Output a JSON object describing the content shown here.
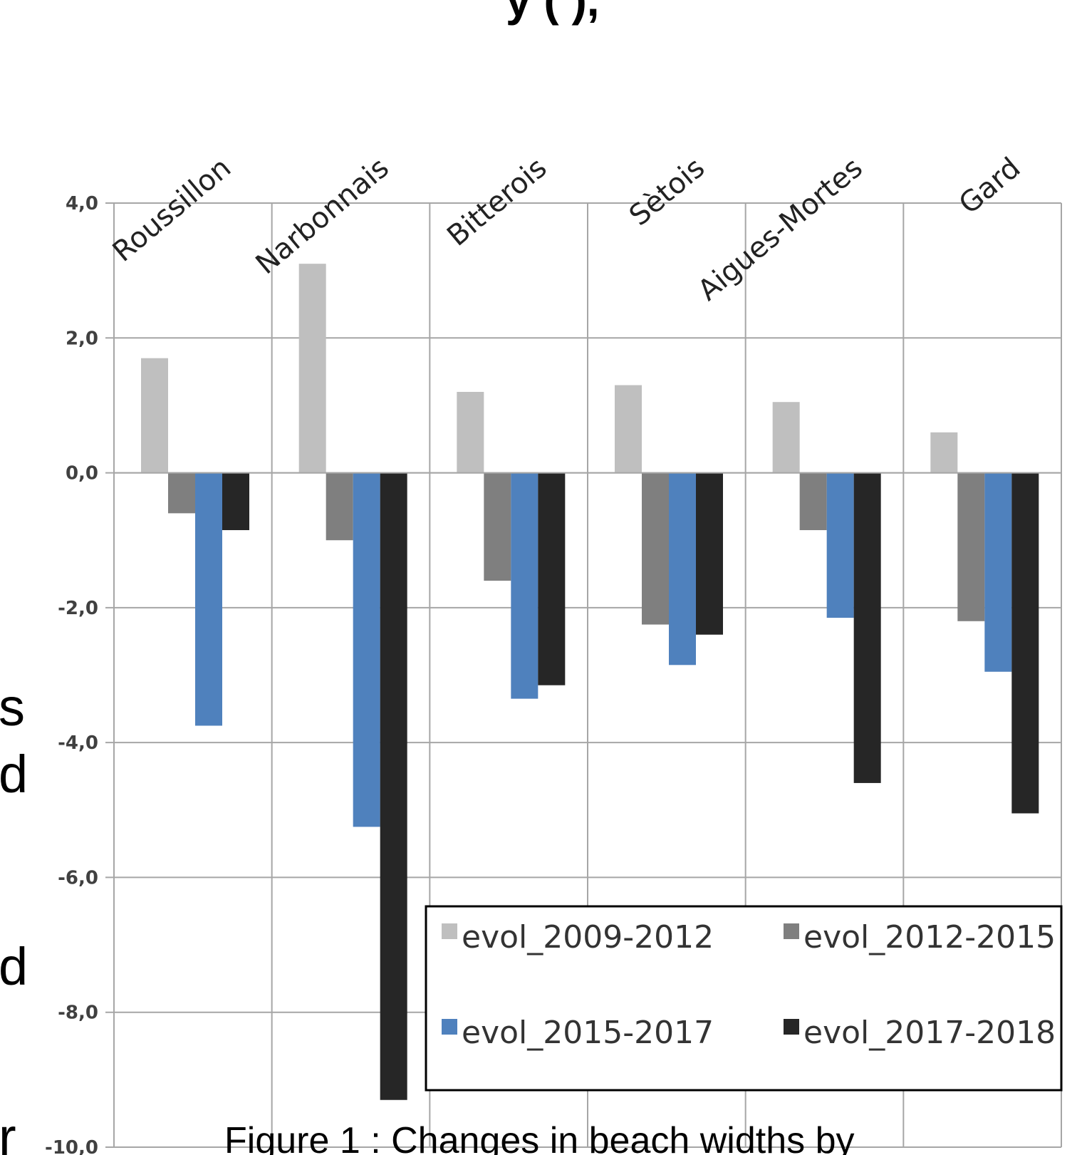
{
  "chart_data": {
    "type": "bar",
    "categories": [
      "Roussillon",
      "Narbonnais",
      "Bitterois",
      "Sètois",
      "Aigues-Mortes",
      "Gard"
    ],
    "series": [
      {
        "name": "evol_2009-2012",
        "color": "#bfbfbf",
        "values": [
          1.7,
          3.1,
          1.2,
          1.3,
          1.05,
          0.6
        ]
      },
      {
        "name": "evol_2012-2015",
        "color": "#7f7f7f",
        "values": [
          -0.6,
          -1.0,
          -1.6,
          -2.25,
          -0.85,
          -2.2
        ]
      },
      {
        "name": "evol_2015-2017",
        "color": "#4f81bd",
        "values": [
          -3.75,
          -5.25,
          -3.35,
          -2.85,
          -2.15,
          -2.95
        ]
      },
      {
        "name": "evol_2017-2018",
        "color": "#262626",
        "values": [
          -0.85,
          -9.3,
          -3.15,
          -2.4,
          -4.6,
          -5.05
        ]
      }
    ],
    "ylim": [
      -10,
      4
    ],
    "yticks": [
      "4,0",
      "2,0",
      "0,0",
      "-2,0",
      "-4,0",
      "-6,0",
      "-8,0",
      "-10,0"
    ],
    "grid": true,
    "legend_position": "bottom-right",
    "xlabel": "",
    "ylabel": ""
  },
  "caption": "Figure 1 : Changes in beach widths by",
  "cropped_text": {
    "left_fragments": [
      "s",
      "d",
      "d",
      "r"
    ],
    "top_fragment": "y    (         ),"
  }
}
